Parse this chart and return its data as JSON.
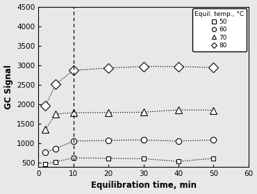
{
  "title": "",
  "xlabel": "Equilibration time, min",
  "ylabel": "GC Signal",
  "xlim": [
    0,
    60
  ],
  "ylim": [
    400,
    4500
  ],
  "yticks": [
    500,
    1000,
    1500,
    2000,
    2500,
    3000,
    3500,
    4000,
    4500
  ],
  "xticks": [
    0,
    10,
    20,
    30,
    40,
    50,
    60
  ],
  "vline_x": 10,
  "series": [
    {
      "label": "50",
      "marker": "s",
      "x": [
        2,
        5,
        10,
        20,
        30,
        40,
        50
      ],
      "y": [
        470,
        530,
        630,
        620,
        610,
        540,
        620
      ]
    },
    {
      "label": "60",
      "marker": "o",
      "x": [
        2,
        5,
        10,
        20,
        30,
        40,
        50
      ],
      "y": [
        770,
        870,
        1060,
        1080,
        1090,
        1060,
        1090
      ]
    },
    {
      "label": "70",
      "marker": "^",
      "x": [
        2,
        5,
        10,
        20,
        30,
        40,
        50
      ],
      "y": [
        1360,
        1750,
        1790,
        1790,
        1800,
        1860,
        1850
      ]
    },
    {
      "label": "80",
      "marker": "D",
      "x": [
        2,
        5,
        10,
        20,
        30,
        40,
        50
      ],
      "y": [
        1960,
        2520,
        2870,
        2930,
        2970,
        2970,
        2940
      ]
    }
  ],
  "legend_title": "Equil. temp., °C",
  "line_color": "black",
  "background_color": "#e8e8e8",
  "plot_bg_color": "#e8e8e8",
  "marker_sizes": [
    5,
    6,
    7,
    7
  ],
  "markers": [
    "s",
    "o",
    "^",
    "D"
  ]
}
